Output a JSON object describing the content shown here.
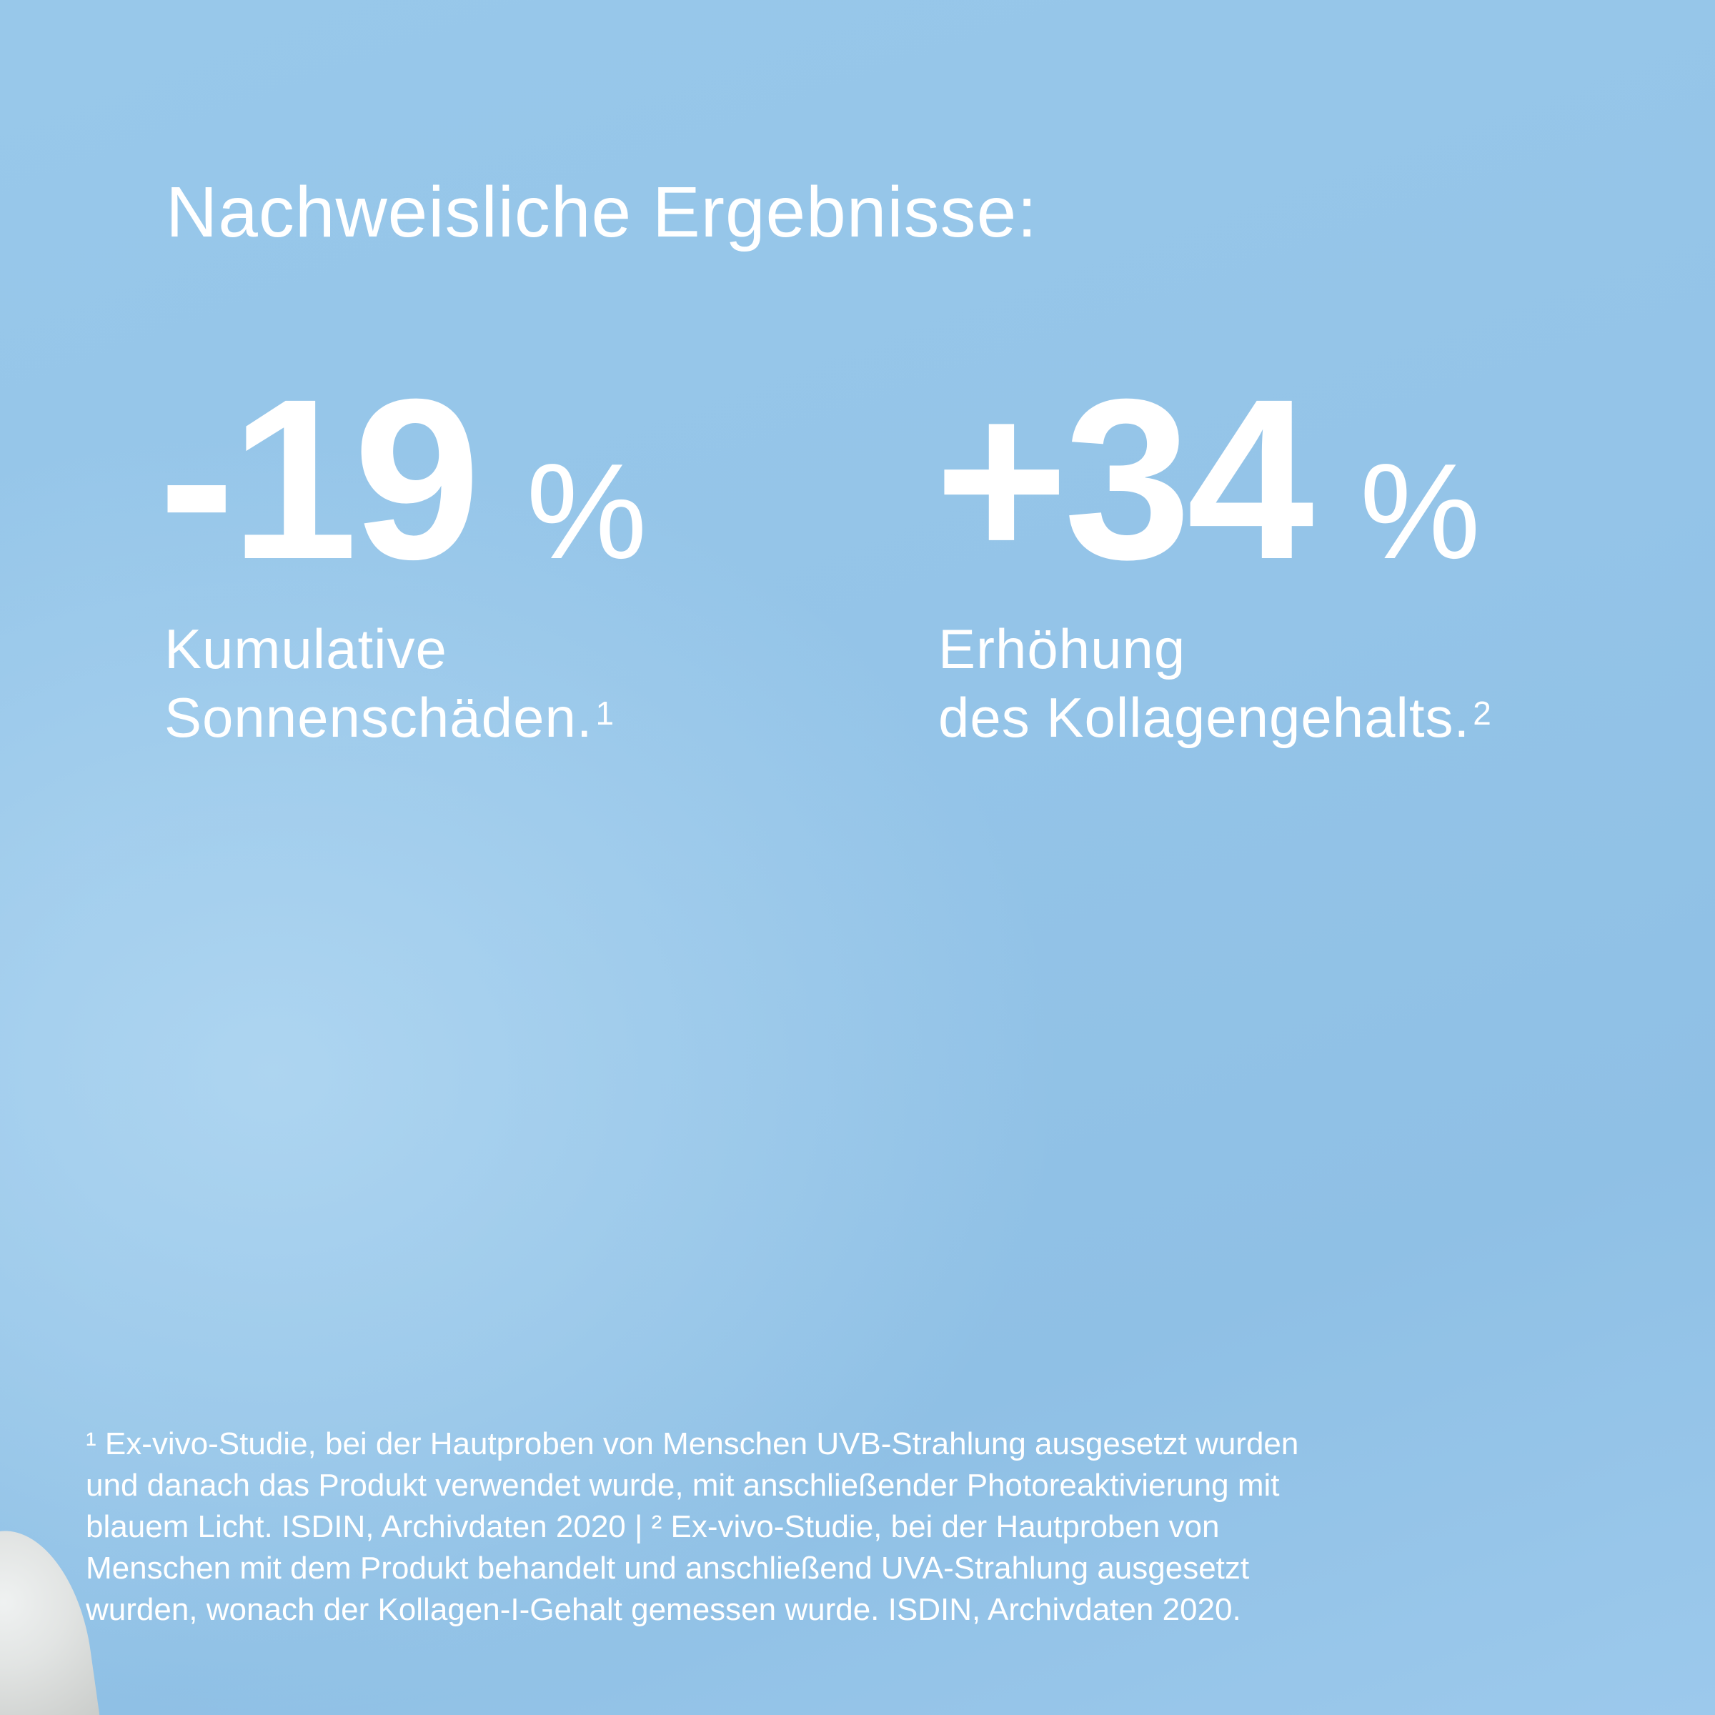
{
  "headline": "Nachweisliche Ergebnisse:",
  "stats": [
    {
      "value": "-19",
      "unit": "%",
      "label_line1": "Kumulative",
      "label_line2": "Sonnenschäden.",
      "footnote_ref": "1"
    },
    {
      "value": "+34",
      "unit": "%",
      "label_line1": "Erhöhung",
      "label_line2": "des Kollagengehalts.",
      "footnote_ref": "2"
    }
  ],
  "footnote_lines": [
    "¹ Ex-vivo-Studie, bei der Hautproben von Menschen UVB-Strahlung ausgesetzt wurden",
    "und danach das Produkt verwendet wurde, mit anschließender Photoreaktivierung mit",
    "blauem Licht. ISDIN, Archivdaten 2020 | ² Ex-vivo-Studie, bei der Hautproben von",
    "Menschen mit dem Produkt behandelt und anschließend UVA-Strahlung ausgesetzt",
    "wurden, wonach der Kollagen-I-Gehalt gemessen wurde. ISDIN, Archivdaten 2020."
  ],
  "colors": {
    "background": "#94c4e8",
    "text": "#ffffff"
  }
}
